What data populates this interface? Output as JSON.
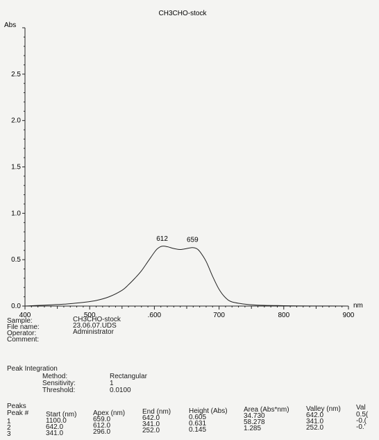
{
  "chart_data": {
    "type": "line",
    "title": "CH3CHO-stock",
    "ylabel": "Abs",
    "xunit": "nm",
    "xlim": [
      400,
      900
    ],
    "ylim": [
      0,
      3.0
    ],
    "x_ticks": [
      "400",
      "500",
      ".600",
      "700",
      "800",
      "900"
    ],
    "y_ticks": [
      "0.0",
      "0.5",
      "1.0",
      "1.5",
      "2.0",
      "2.5"
    ],
    "series": [
      {
        "x": [
          400,
          430,
          460,
          490,
          510,
          530,
          550,
          560,
          570,
          580,
          590,
          600,
          605,
          612,
          620,
          630,
          640,
          650,
          659,
          665,
          670,
          680,
          690,
          700,
          710,
          720,
          740,
          760,
          790,
          820,
          860,
          900
        ],
        "y": [
          0.0,
          0.01,
          0.02,
          0.04,
          0.06,
          0.1,
          0.17,
          0.23,
          0.3,
          0.38,
          0.48,
          0.58,
          0.62,
          0.645,
          0.64,
          0.62,
          0.61,
          0.62,
          0.631,
          0.62,
          0.59,
          0.48,
          0.32,
          0.18,
          0.09,
          0.045,
          0.02,
          0.01,
          0.005,
          0.002,
          0.001,
          0.0
        ]
      }
    ],
    "annotations": [
      {
        "x": 612,
        "y": 0.645,
        "text": "612"
      },
      {
        "x": 659,
        "y": 0.631,
        "text": "659"
      }
    ]
  },
  "info": {
    "sample_label": "Sample:",
    "sample_value": "CH3CHO-stock",
    "file_label": "File name:",
    "file_value": "23.06.07.UDS",
    "operator_label": "Operator:",
    "operator_value": "Administrator",
    "comment_label": "Comment:"
  },
  "integration": {
    "title": "Peak Integration",
    "method_label": "Method:",
    "method_value": "Rectangular",
    "sensitivity_label": "Sensitivity:",
    "sensitivity_value": "1",
    "threshold_label": "Threshold:",
    "threshold_value": "0.0100"
  },
  "peaks": {
    "title": "Peaks",
    "headers": [
      "Peak #",
      "Start (nm)",
      "Apex (nm)",
      "End (nm)",
      "Height (Abs)",
      "Area (Abs*nm)",
      "Valley (nm)",
      "Val"
    ],
    "rows": [
      [
        "1",
        "1100.0",
        "659.0",
        "642.0",
        "0.605",
        "34.730",
        "642.0",
        "0.5("
      ],
      [
        "2",
        "642.0",
        "612.0",
        "341.0",
        "0.631",
        "58.278",
        "341.0",
        "-0.("
      ],
      [
        "3",
        "341.0",
        "296.0",
        "252.0",
        "0.145",
        "1.285",
        "252.0",
        "-0.'"
      ]
    ]
  }
}
